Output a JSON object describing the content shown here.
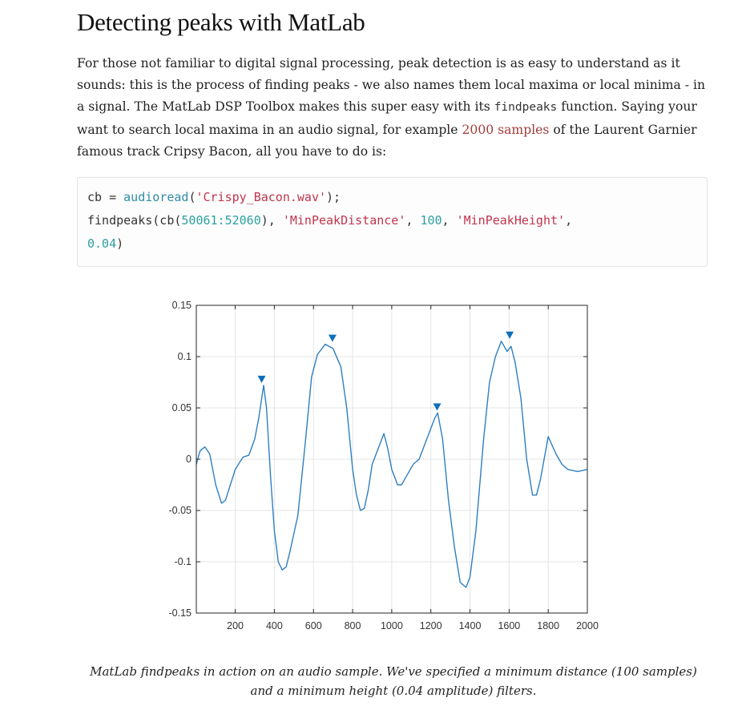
{
  "title": "Detecting peaks with MatLab",
  "paragraph": {
    "part1": "For those not familiar to digital signal processing, peak detection is as easy to understand as it sounds: this is the process of finding peaks - we also names them local maxima or local minima - in a signal. The MatLab DSP Toolbox makes this super easy with its ",
    "code": "findpeaks",
    "part2": " function. Saying your want to search local maxima in an audio signal, for example ",
    "highlight": "2000 samples",
    "part3": " of the Laurent Garnier famous track Cripsy Bacon, all you have to do is:"
  },
  "code": {
    "line1_var": "cb = ",
    "line1_fn": "audioread",
    "line1_open": "(",
    "line1_str": "'Crispy_Bacon.wav'",
    "line1_close": ");",
    "line2_fn": "findpeaks",
    "line2_open": "(cb(",
    "line2_range": "50061:52060",
    "line2_sep1": "), ",
    "line2_str1": "'MinPeakDistance'",
    "line2_sep2": ", ",
    "line2_num1": "100",
    "line2_sep3": ", ",
    "line2_str2": "'MinPeakHeight'",
    "line2_sep4": ",",
    "line3_num": "0.04",
    "line3_close": ")"
  },
  "caption": "MatLab findpeaks in action on an audio sample. We've specified a minimum distance (100 samples) and a minimum height (0.04 amplitude) filters.",
  "colors": {
    "signal": "#2f7fc1",
    "marker": "#0f6fba",
    "highlight": "#a23b3b"
  },
  "chart_data": {
    "type": "line",
    "xlim": [
      1,
      2000
    ],
    "ylim": [
      -0.15,
      0.15
    ],
    "grid": true,
    "x_ticks": [
      200,
      400,
      600,
      800,
      1000,
      1200,
      1400,
      1600,
      1800,
      2000
    ],
    "x_tick_labels": [
      "200",
      "400",
      "600",
      "800",
      "1000",
      "1200",
      "1400",
      "1600",
      "1800",
      "2000"
    ],
    "y_ticks": [
      -0.15,
      -0.1,
      -0.05,
      0,
      0.05,
      0.1,
      0.15
    ],
    "y_tick_labels": [
      "-0.15",
      "-0.1",
      "-0.05",
      "0",
      "0.05",
      "0.1",
      "0.15"
    ],
    "series": [
      {
        "x": [
          1,
          20,
          45,
          70,
          100,
          130,
          150,
          175,
          200,
          240,
          270,
          300,
          320,
          345,
          360,
          380,
          400,
          420,
          440,
          460,
          480,
          520,
          560,
          590,
          620,
          660,
          700,
          740,
          770,
          800,
          820,
          840,
          860,
          880,
          900,
          930,
          960,
          980,
          1000,
          1030,
          1050,
          1080,
          1110,
          1140,
          1170,
          1200,
          1220,
          1235,
          1260,
          1290,
          1320,
          1350,
          1380,
          1400,
          1430,
          1470,
          1500,
          1530,
          1560,
          1590,
          1610,
          1630,
          1660,
          1690,
          1720,
          1740,
          1760,
          1800,
          1840,
          1870,
          1900,
          1950,
          2000
        ],
        "y": [
          -0.005,
          0.008,
          0.012,
          0.005,
          -0.025,
          -0.043,
          -0.04,
          -0.025,
          -0.01,
          0.002,
          0.004,
          0.02,
          0.04,
          0.072,
          0.05,
          -0.015,
          -0.07,
          -0.1,
          -0.108,
          -0.105,
          -0.09,
          -0.055,
          0.02,
          0.08,
          0.102,
          0.112,
          0.108,
          0.09,
          0.05,
          -0.01,
          -0.035,
          -0.05,
          -0.048,
          -0.03,
          -0.005,
          0.01,
          0.025,
          0.01,
          -0.01,
          -0.025,
          -0.025,
          -0.015,
          -0.005,
          0.0,
          0.015,
          0.03,
          0.04,
          0.045,
          0.02,
          -0.04,
          -0.085,
          -0.12,
          -0.125,
          -0.115,
          -0.07,
          0.02,
          0.075,
          0.1,
          0.115,
          0.105,
          0.11,
          0.095,
          0.06,
          0.0,
          -0.035,
          -0.035,
          -0.02,
          0.022,
          0.005,
          -0.005,
          -0.01,
          -0.012,
          -0.01
        ]
      }
    ],
    "peaks": [
      {
        "x": 335,
        "y": 0.072
      },
      {
        "x": 697,
        "y": 0.112
      },
      {
        "x": 1232,
        "y": 0.045
      },
      {
        "x": 1603,
        "y": 0.115
      }
    ]
  }
}
